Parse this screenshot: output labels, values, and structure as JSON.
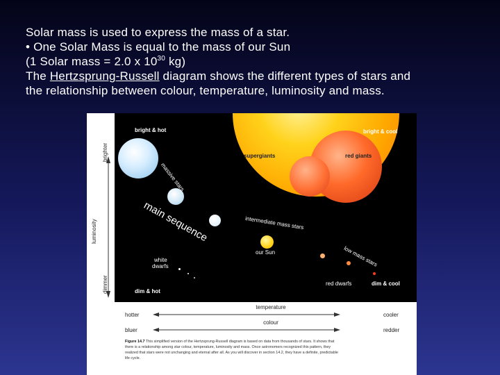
{
  "slide": {
    "line1": "Solar mass is used to express the mass of a star.",
    "line2": "• One Solar Mass is equal to the mass of our Sun",
    "line3_a": "(1 Solar mass = 2.0 x 10",
    "line3_exp": "30",
    "line3_b": " kg)",
    "line4_a": "The ",
    "line4_link": "Hertzsprung-Russell",
    "line4_b": " diagram shows the different types of stars and",
    "line5": "the relationship between colour, temperature, luminosity and mass."
  },
  "diagram": {
    "corner_tl": "bright & hot",
    "corner_tr": "bright & cool",
    "corner_bl": "dim & hot",
    "corner_br": "dim & cool",
    "supergiants": "supergiants",
    "red_giants": "red giants",
    "massive_stars": "massive stars",
    "main_sequence": "main sequence",
    "intermediate": "intermediate mass stars",
    "our_sun": "our Sun",
    "low_mass": "low mass stars",
    "white_dwarfs_1": "white",
    "white_dwarfs_2": "dwarfs",
    "red_dwarfs": "red dwarfs",
    "y_axis_top": "brighter",
    "y_axis_mid": "luminosity",
    "y_axis_bottom": "dimmer"
  },
  "axes": {
    "temp_label": "temperature",
    "temp_left": "hotter",
    "temp_right": "cooler",
    "colour_label": "colour",
    "colour_left": "bluer",
    "colour_right": "redder"
  },
  "caption": {
    "fig": "Figure 14.7",
    "text": "This simplified version of the Hertzsprung-Russell diagram is based on data from thousands of stars. It shows that there is a relationship among star colour, temperature, luminosity and mass. Once astronomers recognized this pattern, they realized that stars were not unchanging and eternal after all. As you will discover in section 14.2, they have a definite, predictable life cycle."
  },
  "colors": {
    "background_top": "#040418",
    "background_bottom": "#2c3590",
    "text": "#ffffff"
  }
}
